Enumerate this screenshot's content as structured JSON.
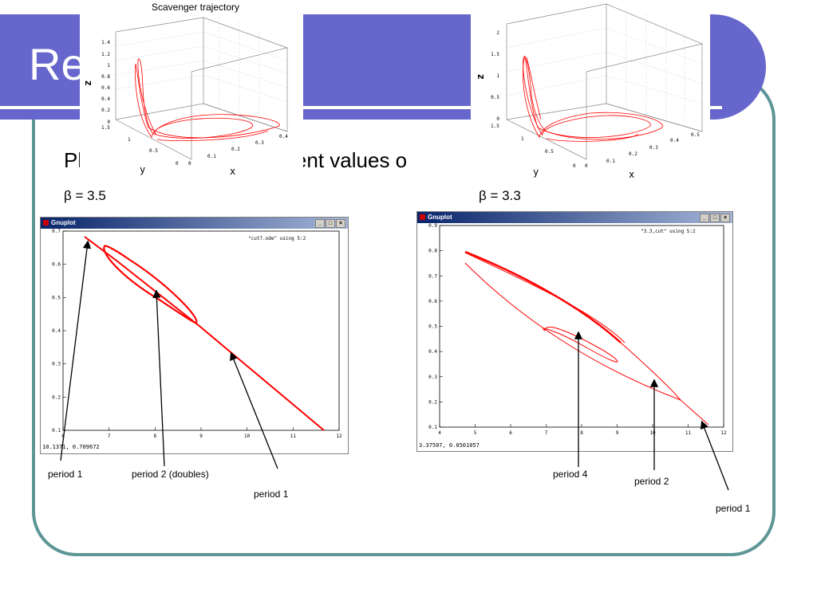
{
  "slide": {
    "title": "Re",
    "body_text": "Pl                             different values o",
    "colors": {
      "title_band": "#6666cc",
      "frame": "#5e9696",
      "curve": "#ff0000"
    }
  },
  "left": {
    "beta_label": "β = 3.5",
    "plot3d": {
      "title": "Scavenger trajectory",
      "z_ticks": [
        "1.4",
        "1.2",
        "1",
        "0.8",
        "0.6",
        "0.4",
        "0.2",
        "0"
      ],
      "y_ticks": [
        "1.5",
        "1",
        "0.5",
        "0"
      ],
      "x_ticks": [
        "0",
        "0.1",
        "0.2",
        "0.3",
        "0.4"
      ],
      "xlabel": "x",
      "ylabel": "y",
      "zlabel": "z"
    },
    "gnuplot": {
      "window_title": "Gnuplot",
      "key": "\"cut7.ode\" using 5:2",
      "status": "10.1371, 0.709672",
      "x_ticks": [
        "6",
        "7",
        "8",
        "9",
        "10",
        "11",
        "12"
      ],
      "y_ticks": [
        "0.7",
        "0.6",
        "0.5",
        "0.4",
        "0.3",
        "0.2",
        "0.1"
      ],
      "xlim": [
        6,
        12
      ],
      "ylim": [
        0.1,
        0.7
      ]
    },
    "annotations": [
      "period 1",
      "period 2 (doubles)",
      "period 1"
    ]
  },
  "right": {
    "beta_label": "β = 3.3",
    "plot3d": {
      "z_ticks": [
        "2",
        "1.5",
        "1",
        "0.5",
        "0"
      ],
      "y_ticks": [
        "1.5",
        "1",
        "0.5",
        "0"
      ],
      "x_ticks": [
        "0",
        "0.1",
        "0.2",
        "0.3",
        "0.4",
        "0.5"
      ],
      "xlabel": "x",
      "ylabel": "y",
      "zlabel": "z"
    },
    "gnuplot": {
      "window_title": "Gnuplot",
      "key": "\"3.3,cut\" using 5:2",
      "status": "3.37507, 0.0501057",
      "x_ticks": [
        "4",
        "5",
        "6",
        "7",
        "8",
        "9",
        "10",
        "11",
        "12"
      ],
      "y_ticks": [
        "0.9",
        "0.8",
        "0.7",
        "0.6",
        "0.5",
        "0.4",
        "0.3",
        "0.2",
        "0.1"
      ],
      "xlim": [
        4,
        12
      ],
      "ylim": [
        0.1,
        0.9
      ]
    },
    "annotations": [
      "period 4",
      "period 2",
      "period 1"
    ]
  },
  "window_buttons": [
    "_",
    "□",
    "×"
  ]
}
